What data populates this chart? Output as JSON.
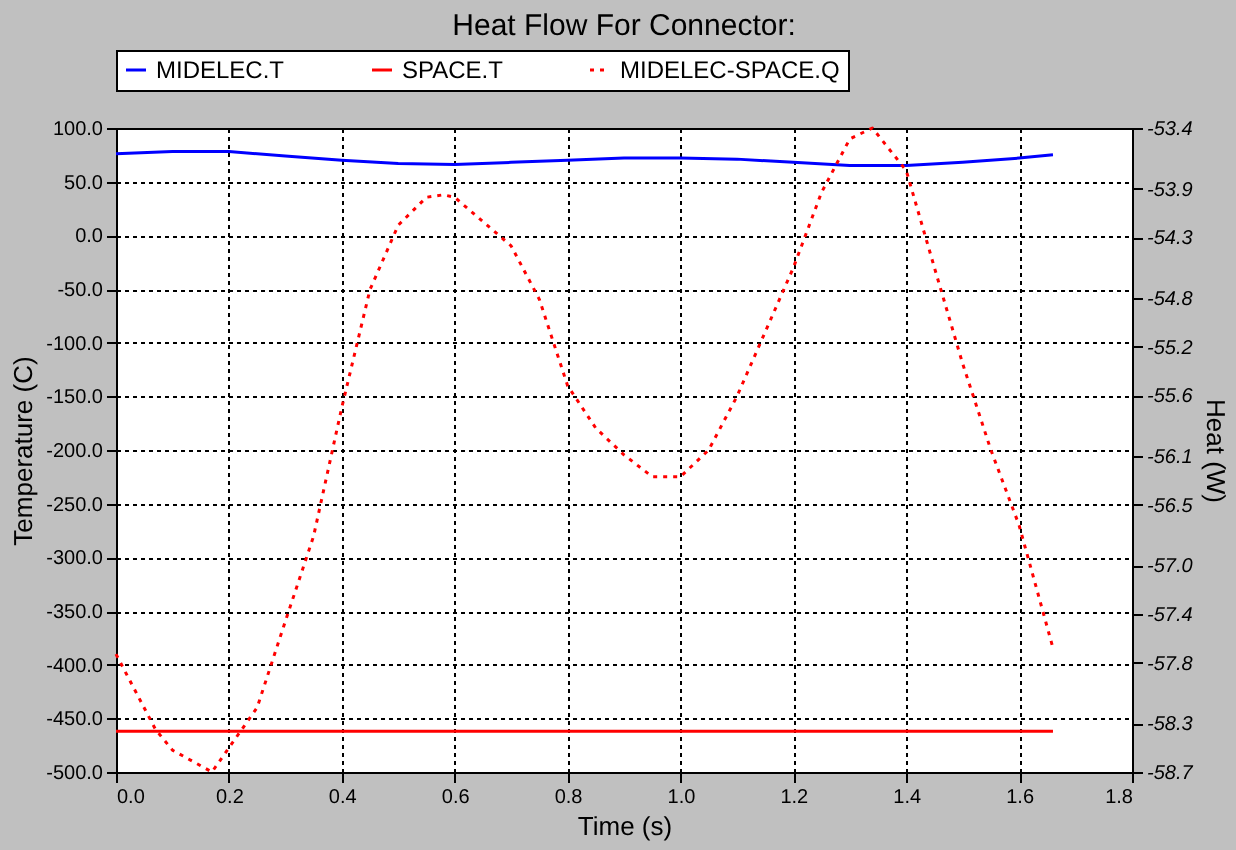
{
  "chart_data": {
    "type": "line",
    "title": "Heat Flow For Connector:",
    "xlabel": "Time (s)",
    "ylabel": "Temperature (C)",
    "y2label": "Heat (W)",
    "xlim": [
      0,
      1.8
    ],
    "ylim": [
      -500,
      100
    ],
    "y2lim": [
      -58.7,
      -53.4
    ],
    "xticks": [
      {
        "value": 0,
        "label": "0.0"
      },
      {
        "value": 0.2,
        "label": "0.2"
      },
      {
        "value": 0.4,
        "label": "0.4"
      },
      {
        "value": 0.6,
        "label": "0.6"
      },
      {
        "value": 0.8,
        "label": "0.8"
      },
      {
        "value": 1.0,
        "label": "1.0"
      },
      {
        "value": 1.2,
        "label": "1.2"
      },
      {
        "value": 1.4,
        "label": "1.4"
      },
      {
        "value": 1.6,
        "label": "1.6"
      },
      {
        "value": 1.8,
        "label": "1.8"
      }
    ],
    "yticks": [
      {
        "value": -500,
        "label": "-500.0"
      },
      {
        "value": -450,
        "label": "-450.0"
      },
      {
        "value": -400,
        "label": "-400.0"
      },
      {
        "value": -350,
        "label": "-350.0"
      },
      {
        "value": -300,
        "label": "-300.0"
      },
      {
        "value": -250,
        "label": "-250.0"
      },
      {
        "value": -200,
        "label": "-200.0"
      },
      {
        "value": -150,
        "label": "-150.0"
      },
      {
        "value": -100,
        "label": "-100.0"
      },
      {
        "value": -50,
        "label": "-50.0"
      },
      {
        "value": 0,
        "label": "0.0"
      },
      {
        "value": 50,
        "label": "50.0"
      },
      {
        "value": 100,
        "label": "100.0"
      }
    ],
    "y2ticks": [
      {
        "value": -58.7,
        "label": "-58.7"
      },
      {
        "value": -58.3,
        "label": "-58.3"
      },
      {
        "value": -57.8,
        "label": "-57.8"
      },
      {
        "value": -57.4,
        "label": "-57.4"
      },
      {
        "value": -57.0,
        "label": "-57.0"
      },
      {
        "value": -56.5,
        "label": "-56.5"
      },
      {
        "value": -56.1,
        "label": "-56.1"
      },
      {
        "value": -55.6,
        "label": "-55.6"
      },
      {
        "value": -55.2,
        "label": "-55.2"
      },
      {
        "value": -54.8,
        "label": "-54.8"
      },
      {
        "value": -54.3,
        "label": "-54.3"
      },
      {
        "value": -53.9,
        "label": "-53.9"
      },
      {
        "value": -53.4,
        "label": "-53.4"
      }
    ],
    "grid": true,
    "legend": "top",
    "series": [
      {
        "name": "MIDELEC.T",
        "color": "#0000ff",
        "line_style": "solid",
        "x": [
          0,
          0.1,
          0.2,
          0.3,
          0.4,
          0.5,
          0.6,
          0.7,
          0.8,
          0.9,
          1.0,
          1.1,
          1.2,
          1.3,
          1.4,
          1.5,
          1.6,
          1.66
        ],
        "values": [
          76,
          78,
          78,
          74,
          70,
          67,
          66,
          68,
          70,
          72,
          72,
          71,
          68,
          65,
          65,
          68,
          72,
          75
        ]
      },
      {
        "name": "SPACE.T",
        "color": "#ff0000",
        "line_style": "solid",
        "x": [
          0,
          1.66
        ],
        "values": [
          -462,
          -462
        ]
      },
      {
        "name": "MIDELEC-SPACE.Q",
        "color": "#ff0000",
        "line_style": "dotted",
        "axis": "y2",
        "x": [
          0,
          0.07,
          0.1,
          0.17,
          0.25,
          0.3,
          0.35,
          0.4,
          0.45,
          0.5,
          0.55,
          0.58,
          0.6,
          0.7,
          0.75,
          0.8,
          0.85,
          0.9,
          0.95,
          1.0,
          1.05,
          1.1,
          1.15,
          1.2,
          1.25,
          1.3,
          1.34,
          1.4,
          1.45,
          1.5,
          1.55,
          1.6,
          1.66
        ],
        "values": [
          -57.73,
          -58.35,
          -58.52,
          -58.7,
          -58.17,
          -57.46,
          -56.76,
          -55.7,
          -54.73,
          -54.2,
          -53.97,
          -53.95,
          -53.97,
          -54.37,
          -54.81,
          -55.52,
          -55.87,
          -56.09,
          -56.27,
          -56.27,
          -56.05,
          -55.61,
          -55.08,
          -54.55,
          -53.93,
          -53.49,
          -53.4,
          -53.75,
          -54.55,
          -55.34,
          -56.05,
          -56.67,
          -57.68
        ]
      }
    ]
  }
}
